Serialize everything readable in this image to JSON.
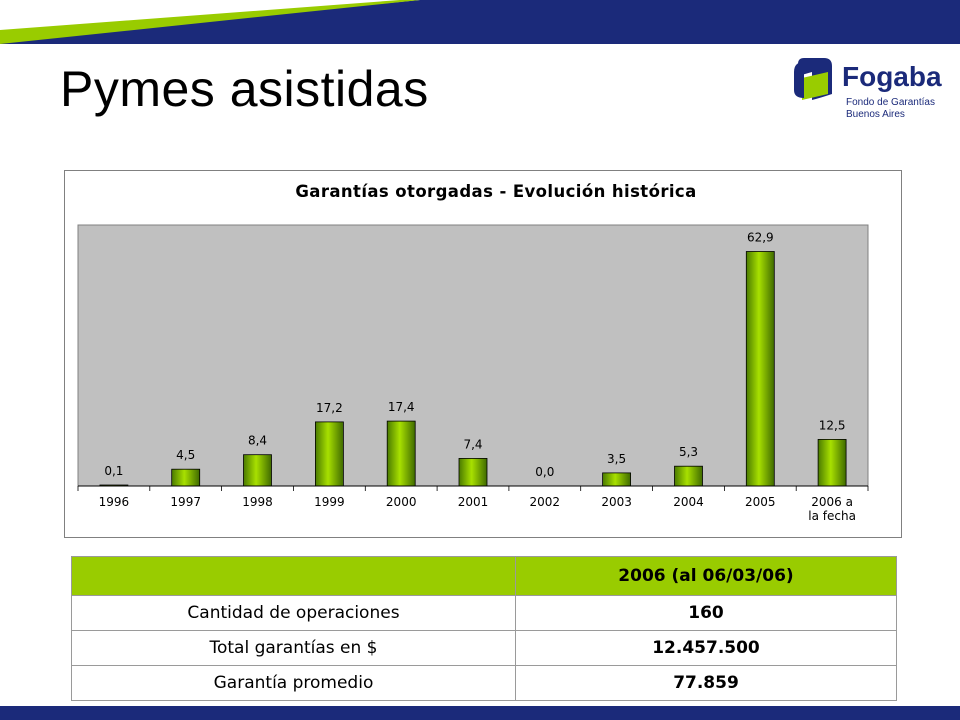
{
  "page": {
    "title": "Pymes asistidas"
  },
  "logo": {
    "name": "Fogaba",
    "line1": "Fondo de Garantías",
    "line2": "Buenos Aires"
  },
  "colors": {
    "navy": "#1b2a7a",
    "green": "#99cc00",
    "plot_bg": "#c0c0c0"
  },
  "chart_data": {
    "type": "bar",
    "title": "Garantías otorgadas - Evolución histórica",
    "categories": [
      "1996",
      "1997",
      "1998",
      "1999",
      "2000",
      "2001",
      "2002",
      "2003",
      "2004",
      "2005",
      "2006 a la fecha"
    ],
    "values": [
      0.1,
      4.5,
      8.4,
      17.2,
      17.4,
      7.4,
      0.0,
      3.5,
      5.3,
      62.9,
      12.5
    ],
    "data_labels": [
      "0,1",
      "4,5",
      "8,4",
      "17,2",
      "17,4",
      "7,4",
      "0,0",
      "3,5",
      "5,3",
      "62,9",
      "12,5"
    ],
    "xlabel": "",
    "ylabel": "",
    "ylim": [
      0,
      70
    ],
    "grid": false,
    "legend": "none"
  },
  "table": {
    "header": [
      "",
      "2006 (al 06/03/06)"
    ],
    "rows": [
      {
        "label": "Cantidad de operaciones",
        "value": "160"
      },
      {
        "label": "Total garantías en $",
        "value": "12.457.500"
      },
      {
        "label": "Garantía promedio",
        "value": "77.859"
      }
    ]
  }
}
